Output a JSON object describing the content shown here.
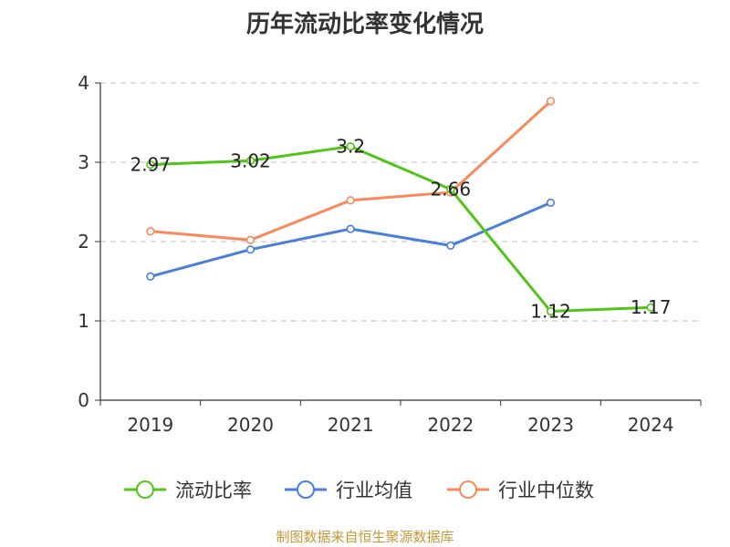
{
  "colors": {
    "current_ratio": "#52c41a",
    "industry_avg": "#4a7fd9",
    "industry_median": "#f7895a",
    "axis": "#333333",
    "grid": "#cccccc",
    "source": "#c8973a"
  },
  "chart_data": {
    "type": "line",
    "title": "历年流动比率变化情况",
    "xlabel": "",
    "ylabel": "",
    "ylim": [
      0,
      4
    ],
    "y_ticks": [
      "0",
      "1",
      "2",
      "3",
      "4"
    ],
    "categories": [
      "2019",
      "2020",
      "2021",
      "2022",
      "2023",
      "2024"
    ],
    "grid": true,
    "legend_position": "bottom",
    "series": [
      {
        "name": "流动比率",
        "key": "current_ratio",
        "values": [
          2.97,
          3.02,
          3.2,
          2.66,
          1.12,
          1.17
        ],
        "labels": [
          "2.97",
          "3.02",
          "3.2",
          "2.66",
          "1.12",
          "1.17"
        ]
      },
      {
        "name": "行业均值",
        "key": "industry_avg",
        "values": [
          1.56,
          1.9,
          2.16,
          1.95,
          2.49,
          null
        ]
      },
      {
        "name": "行业中位数",
        "key": "industry_median",
        "values": [
          2.13,
          2.02,
          2.52,
          2.62,
          3.77,
          null
        ]
      }
    ]
  },
  "source_note": "制图数据来自恒生聚源数据库"
}
